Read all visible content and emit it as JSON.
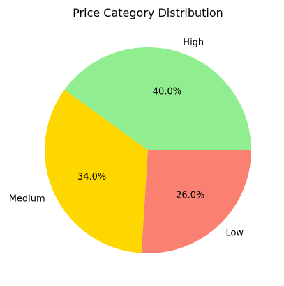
{
  "chart_data": {
    "type": "pie",
    "title": "Price Category Distribution",
    "start_angle_deg": 0,
    "direction": "counterclockwise",
    "slices": [
      {
        "label": "High",
        "value": 40.0,
        "pct_label": "40.0%",
        "color": "#90ee90"
      },
      {
        "label": "Medium",
        "value": 34.0,
        "pct_label": "34.0%",
        "color": "#ffd700"
      },
      {
        "label": "Low",
        "value": 26.0,
        "pct_label": "26.0%",
        "color": "#fa8072"
      }
    ]
  }
}
